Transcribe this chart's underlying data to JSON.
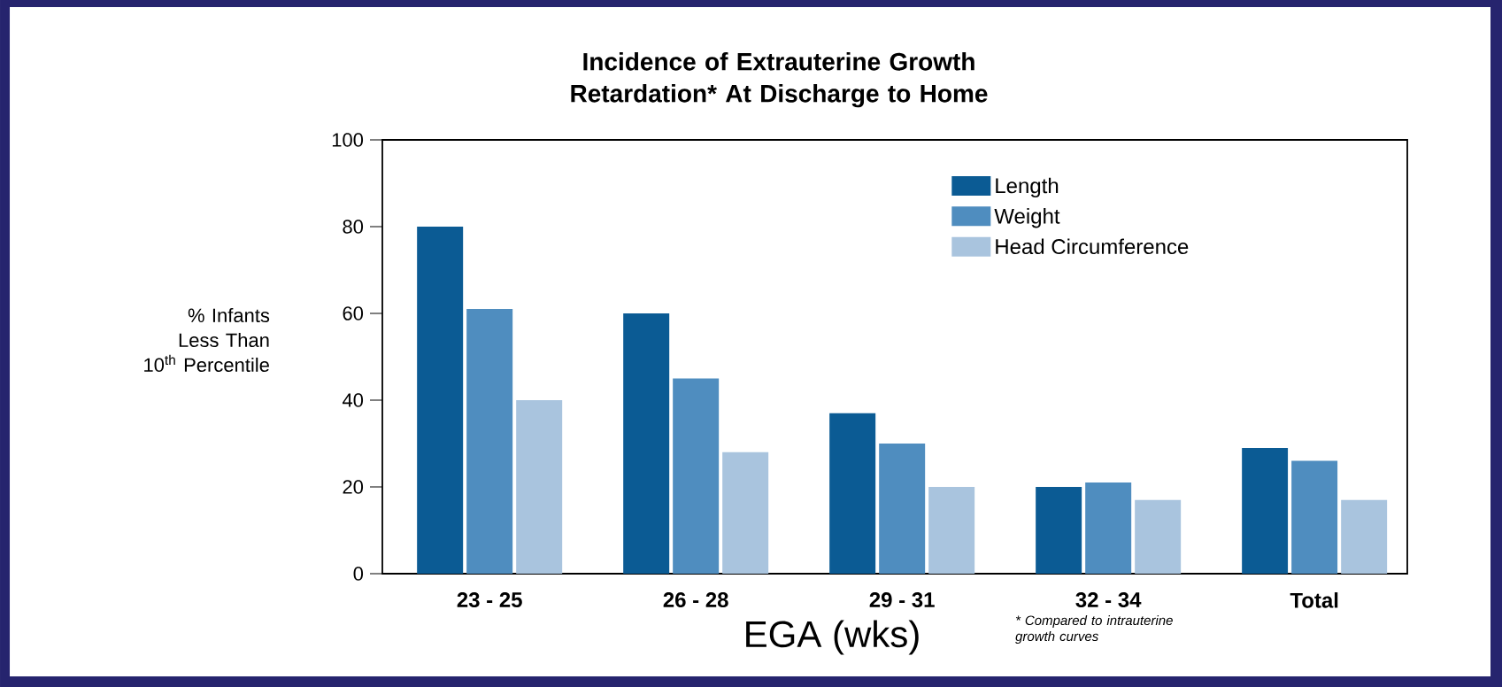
{
  "chart_data": {
    "type": "bar",
    "title": "Incidence of Extrauterine Growth Retardation* At Discharge to Home",
    "xlabel": "EGA (wks)",
    "ylabel": "% Infants Less Than 10$^{th}$ Percentile",
    "categories": [
      "23 - 25",
      "26 - 28",
      "29 - 31",
      "32 - 34",
      "Total"
    ],
    "series": [
      {
        "name": "Length",
        "color": "#0b5b94",
        "values": [
          80,
          60,
          37,
          20,
          29
        ]
      },
      {
        "name": "Weight",
        "color": "#4f8dbf",
        "values": [
          61,
          45,
          30,
          21,
          26
        ]
      },
      {
        "name": "Head Circumference",
        "color": "#a9c4de",
        "values": [
          40,
          28,
          20,
          17,
          17
        ]
      }
    ],
    "ylim": [
      0,
      100
    ],
    "yticks": [
      0,
      20,
      40,
      60,
      80,
      100
    ],
    "legend": "top right",
    "annotations": [
      "* Compared to intrauterine growth curves"
    ]
  }
}
